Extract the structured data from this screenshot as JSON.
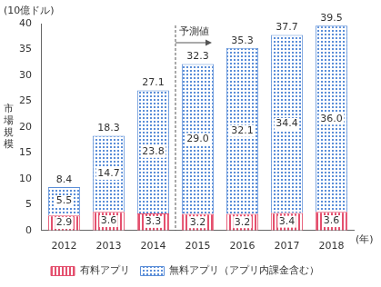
{
  "chart_data": {
    "type": "bar",
    "stacked": true,
    "y_unit": "(10億ドル)",
    "ylabel": "市場規模",
    "xlabel": "(年)",
    "categories": [
      "2012",
      "2013",
      "2014",
      "2015",
      "2016",
      "2017",
      "2018"
    ],
    "series": [
      {
        "name": "有料アプリ",
        "color": "#e4506e",
        "values": [
          2.9,
          3.6,
          3.3,
          3.2,
          3.2,
          3.4,
          3.6
        ]
      },
      {
        "name": "無料アプリ（アプリ内課金含む）",
        "color": "#5b8ed8",
        "values": [
          5.5,
          14.7,
          23.8,
          29.0,
          32.1,
          34.4,
          36.0
        ],
        "value_labels": [
          "5.5",
          "14.7",
          "23.8",
          "29.0",
          "32.1",
          "34.4",
          "36.0"
        ]
      }
    ],
    "totals": [
      8.4,
      18.3,
      27.1,
      32.3,
      35.3,
      37.7,
      39.5
    ],
    "annotation": {
      "text": "予測値",
      "from": "2015"
    },
    "ylim": [
      0,
      40
    ],
    "yticks": [
      0,
      5,
      10,
      15,
      20,
      25,
      30,
      35,
      40
    ],
    "grid": false,
    "data_labels": true,
    "legend": "bottom"
  }
}
